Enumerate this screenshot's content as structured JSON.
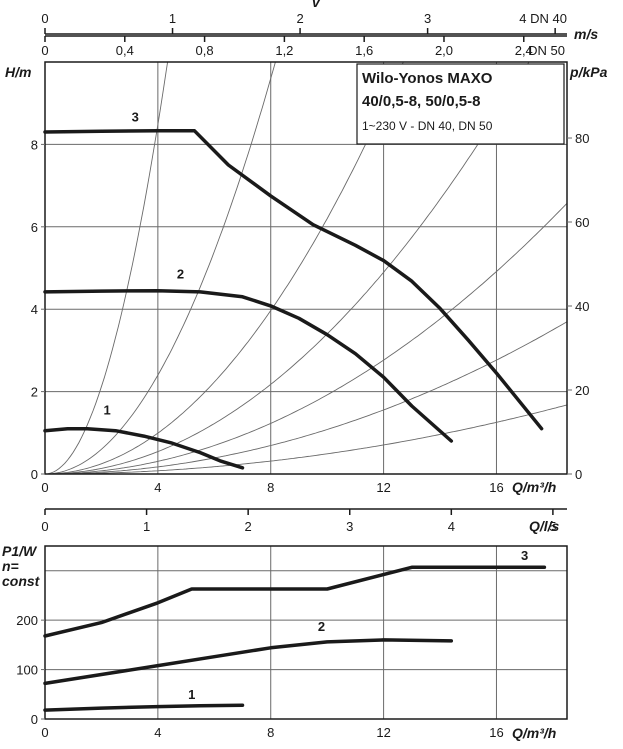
{
  "chart_data": [
    {
      "type": "line",
      "title": "Wilo-Yonos MAXO 40/0,5-8, 50/0,5-8",
      "subtitle": "1~230 V - DN 40, DN 50",
      "xlabel": "Q/m³/h",
      "ylabel": "H/m",
      "y2label": "p/kPa",
      "xlim": [
        0,
        18.5
      ],
      "ylim": [
        0,
        10
      ],
      "y2lim": [
        0,
        98.1
      ],
      "xticks": [
        "0",
        "4",
        "8",
        "12",
        "16"
      ],
      "yticks": [
        "0",
        "2",
        "4",
        "6",
        "8"
      ],
      "y2ticks": [
        "0",
        "20",
        "40",
        "60",
        "80"
      ],
      "grid": true,
      "top_axes": [
        {
          "label": "v",
          "ticks": [
            "0",
            "1",
            "2",
            "3",
            "4 DN 40"
          ],
          "q_per_unit": 4.52
        },
        {
          "label": "m/s",
          "ticks": [
            "0",
            "0,4",
            "0,8",
            "1,2",
            "1,6",
            "2,0",
            "2,4",
            "DN 50"
          ],
          "q_per_unit": 7.07
        }
      ],
      "series": [
        {
          "name": "1",
          "x": [
            0,
            0.8,
            1.5,
            2.5,
            3.5,
            4.5,
            5.5,
            6.2,
            7.0
          ],
          "y": [
            1.05,
            1.1,
            1.1,
            1.05,
            0.92,
            0.75,
            0.52,
            0.32,
            0.15
          ]
        },
        {
          "name": "2",
          "x": [
            0,
            2,
            4,
            5.5,
            7,
            8,
            9,
            10,
            11,
            12,
            13,
            14.4
          ],
          "y": [
            4.42,
            4.44,
            4.45,
            4.42,
            4.3,
            4.08,
            3.78,
            3.38,
            2.92,
            2.35,
            1.65,
            0.8
          ]
        },
        {
          "name": "3",
          "x": [
            0,
            2,
            4,
            5.3,
            6.5,
            8,
            9.5,
            11,
            12,
            13,
            14,
            15,
            16,
            17.6
          ],
          "y": [
            8.3,
            8.32,
            8.33,
            8.33,
            7.5,
            6.75,
            6.05,
            5.55,
            5.18,
            4.68,
            4.02,
            3.25,
            2.45,
            1.1
          ]
        }
      ],
      "system_curves_k": [
        0.53,
        0.15,
        0.062,
        0.034,
        0.0192,
        0.0108,
        0.0049
      ]
    },
    {
      "type": "line",
      "xlabel": "Q/m³/h",
      "ylabel": "P1/W",
      "ylabel_line2": "n=",
      "ylabel_line3": "const",
      "xlim": [
        0,
        18.5
      ],
      "ylim": [
        0,
        350
      ],
      "xticks": [
        "0",
        "4",
        "8",
        "12",
        "16"
      ],
      "yticks": [
        "0",
        "100",
        "200"
      ],
      "grid": true,
      "top_axis": {
        "label": "Q/l/s",
        "ticks": [
          "0",
          "1",
          "2",
          "3",
          "4",
          "5"
        ]
      },
      "series": [
        {
          "name": "1",
          "x": [
            0,
            2,
            4,
            5.5,
            7.0
          ],
          "y": [
            18,
            22,
            25,
            27,
            28
          ]
        },
        {
          "name": "2",
          "x": [
            0,
            2,
            4,
            6,
            8,
            10,
            12,
            14.4
          ],
          "y": [
            72,
            90,
            108,
            126,
            144,
            156,
            160,
            158
          ]
        },
        {
          "name": "3",
          "x": [
            0,
            2,
            4,
            5.2,
            10,
            13,
            17.7
          ],
          "y": [
            168,
            195,
            235,
            263,
            263,
            307,
            307
          ]
        }
      ]
    }
  ]
}
